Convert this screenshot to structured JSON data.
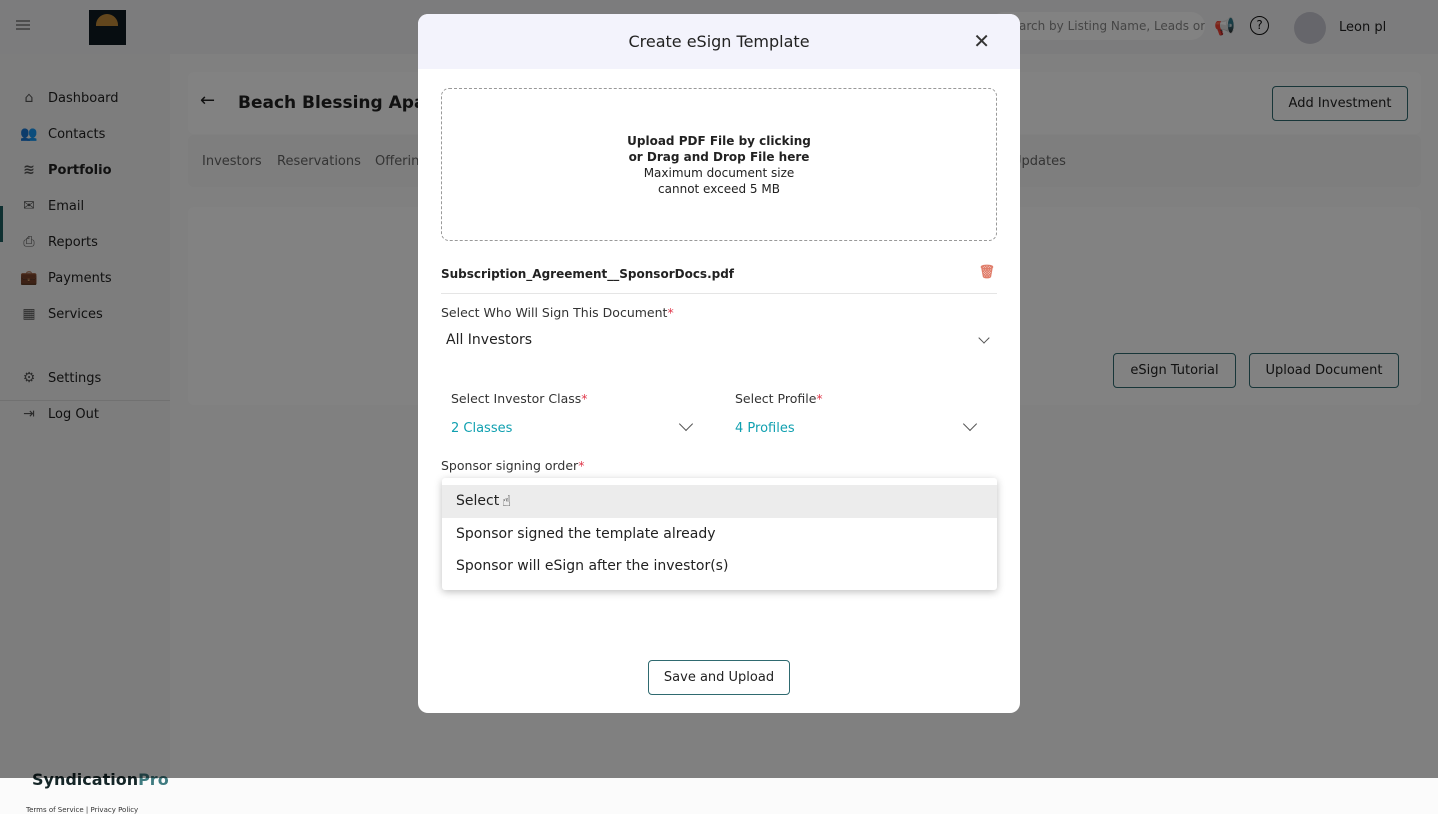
{
  "header": {
    "search_placeholder": "Search by Listing Name, Leads or Investors",
    "user_name": "Leon pl"
  },
  "sidebar": {
    "items": [
      {
        "label": "Dashboard",
        "icon": "home-icon"
      },
      {
        "label": "Contacts",
        "icon": "users-icon"
      },
      {
        "label": "Portfolio",
        "icon": "layers-icon"
      },
      {
        "label": "Email",
        "icon": "mail-icon"
      },
      {
        "label": "Reports",
        "icon": "printer-icon"
      },
      {
        "label": "Payments",
        "icon": "briefcase-icon"
      },
      {
        "label": "Services",
        "icon": "building-icon"
      },
      {
        "label": "Settings",
        "icon": "gear-icon"
      },
      {
        "label": "Log Out",
        "icon": "logout-icon"
      }
    ],
    "brand_main": "Syndication",
    "brand_accent": "Pro",
    "terms": "Terms of Service",
    "privacy": "Privacy Policy"
  },
  "page": {
    "title": "Beach Blessing Apartm",
    "tabs": [
      "Investors",
      "Reservations",
      "Offerin",
      "Updates"
    ],
    "add_investment": "Add Investment",
    "esign_tutorial": "eSign Tutorial",
    "upload_document": "Upload Document"
  },
  "modal": {
    "title": "Create eSign Template",
    "upload_line1": "Upload PDF File by clicking",
    "upload_line2": "or Drag and Drop File here",
    "upload_line3": "Maximum document size",
    "upload_line4": "cannot exceed 5 MB",
    "file_name": "Subscription_Agreement__SponsorDocs.pdf",
    "signer_label": "Select Who Will Sign This Document",
    "signer_value": "All Investors",
    "class_label": "Select Investor Class",
    "class_value": "2 Classes",
    "profile_label": "Select Profile",
    "profile_value": "4 Profiles",
    "order_label": "Sponsor signing order",
    "required_mark": "*",
    "options": [
      "Select",
      "Sponsor signed the template already",
      "Sponsor will eSign after the investor(s)"
    ],
    "selected_option": "Select",
    "save_label": "Save and Upload"
  },
  "colors": {
    "accent": "#10a0b0",
    "required": "#e0384b",
    "brand": "#2f6a70"
  }
}
